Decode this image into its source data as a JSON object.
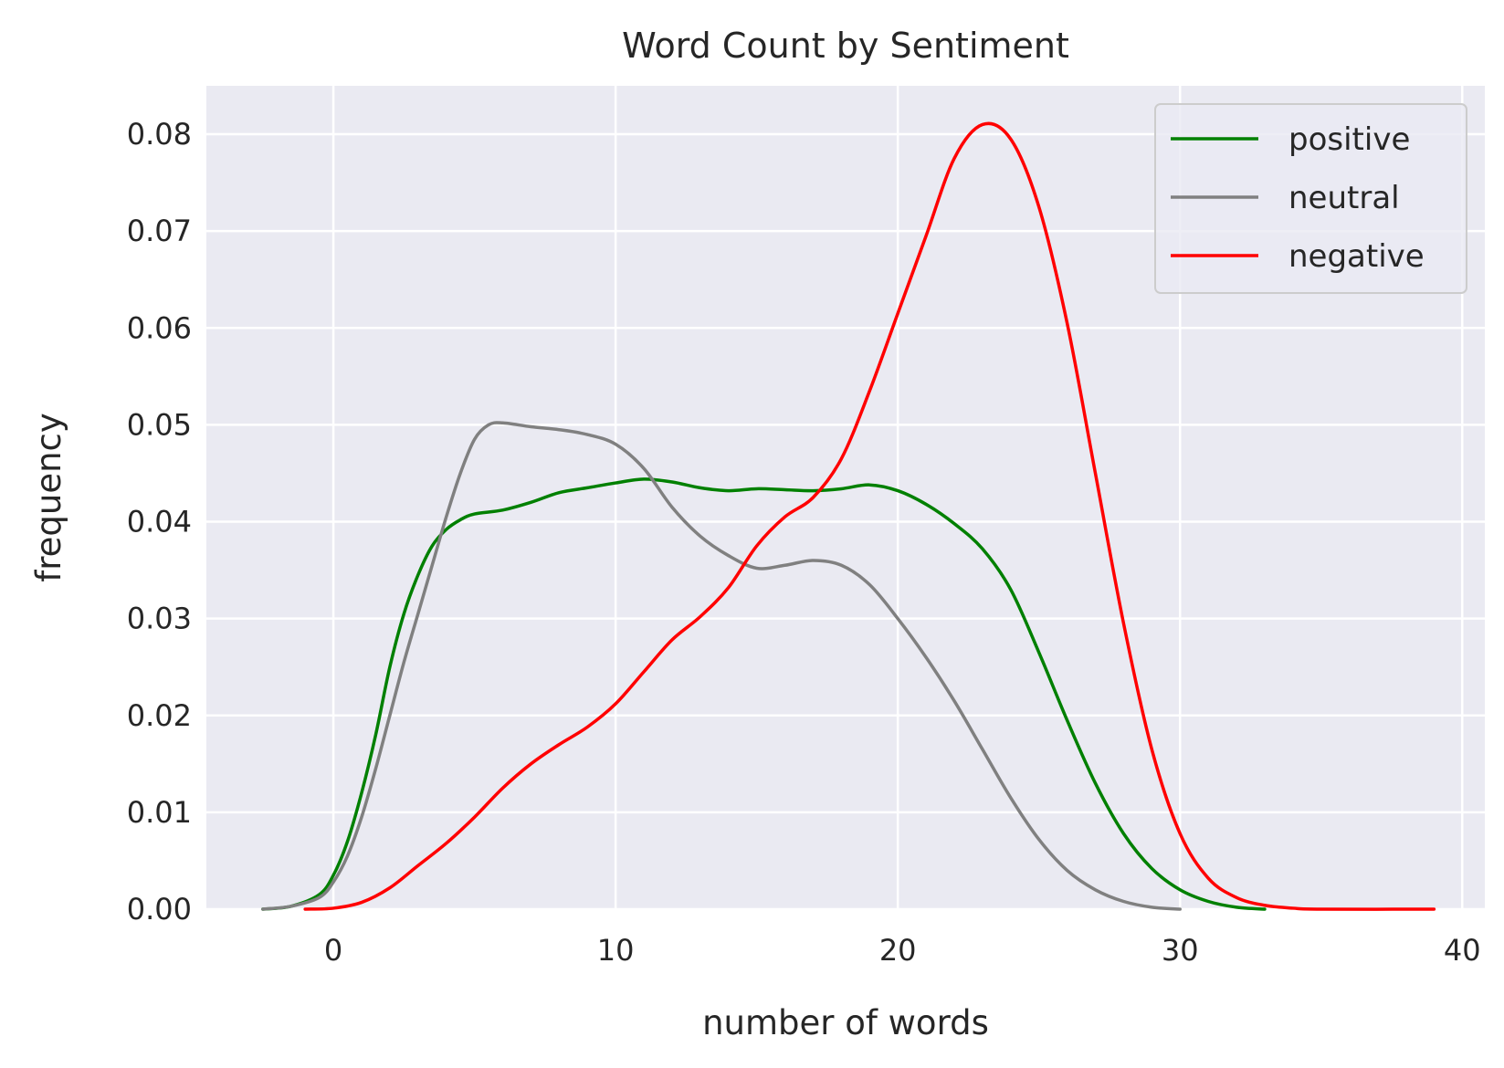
{
  "chart_data": {
    "type": "line",
    "title": "Word Count by Sentiment",
    "xlabel": "number of words",
    "ylabel": "frequency",
    "xlim": [
      -4.5,
      40.8
    ],
    "ylim": [
      0,
      0.085
    ],
    "xticks": [
      0,
      10,
      20,
      30,
      40
    ],
    "xtick_labels": [
      "0",
      "10",
      "20",
      "30",
      "40"
    ],
    "yticks": [
      0,
      0.01,
      0.02,
      0.03,
      0.04,
      0.05,
      0.06,
      0.07,
      0.08
    ],
    "ytick_labels": [
      "0.00",
      "0.01",
      "0.02",
      "0.03",
      "0.04",
      "0.05",
      "0.06",
      "0.07",
      "0.08"
    ],
    "grid": true,
    "background": "#eaeaf2",
    "legend_position": "top-right",
    "series": [
      {
        "name": "positive",
        "color": "#008000",
        "points": [
          [
            -2.5,
            0.0
          ],
          [
            -1.5,
            0.0003
          ],
          [
            -0.5,
            0.0015
          ],
          [
            0,
            0.0035
          ],
          [
            0.5,
            0.007
          ],
          [
            1,
            0.012
          ],
          [
            1.5,
            0.018
          ],
          [
            2,
            0.025
          ],
          [
            2.5,
            0.0305
          ],
          [
            3,
            0.0345
          ],
          [
            3.5,
            0.0375
          ],
          [
            4,
            0.0392
          ],
          [
            4.5,
            0.0402
          ],
          [
            5,
            0.0408
          ],
          [
            6,
            0.0412
          ],
          [
            7,
            0.042
          ],
          [
            8,
            0.043
          ],
          [
            9,
            0.0435
          ],
          [
            10,
            0.044
          ],
          [
            11,
            0.0444
          ],
          [
            12,
            0.0441
          ],
          [
            13,
            0.0435
          ],
          [
            14,
            0.0432
          ],
          [
            15,
            0.0434
          ],
          [
            16,
            0.0433
          ],
          [
            17,
            0.0432
          ],
          [
            18,
            0.0434
          ],
          [
            19,
            0.0438
          ],
          [
            20,
            0.0432
          ],
          [
            21,
            0.0418
          ],
          [
            22,
            0.0398
          ],
          [
            23,
            0.0372
          ],
          [
            24,
            0.033
          ],
          [
            25,
            0.0265
          ],
          [
            26,
            0.0195
          ],
          [
            27,
            0.013
          ],
          [
            28,
            0.0078
          ],
          [
            29,
            0.0042
          ],
          [
            30,
            0.002
          ],
          [
            31,
            0.0008
          ],
          [
            32,
            0.0002
          ],
          [
            33,
            0.0
          ]
        ]
      },
      {
        "name": "neutral",
        "color": "#808080",
        "points": [
          [
            -2.5,
            0.0
          ],
          [
            -1.5,
            0.0003
          ],
          [
            -0.5,
            0.0012
          ],
          [
            0,
            0.0028
          ],
          [
            0.5,
            0.0055
          ],
          [
            1,
            0.0095
          ],
          [
            1.5,
            0.0145
          ],
          [
            2,
            0.02
          ],
          [
            2.5,
            0.0255
          ],
          [
            3,
            0.0305
          ],
          [
            3.5,
            0.0355
          ],
          [
            4,
            0.0405
          ],
          [
            4.5,
            0.045
          ],
          [
            5,
            0.0485
          ],
          [
            5.5,
            0.05
          ],
          [
            6,
            0.0502
          ],
          [
            7,
            0.0498
          ],
          [
            8,
            0.0495
          ],
          [
            9,
            0.049
          ],
          [
            10,
            0.048
          ],
          [
            11,
            0.0455
          ],
          [
            12,
            0.0415
          ],
          [
            13,
            0.0385
          ],
          [
            14,
            0.0365
          ],
          [
            15,
            0.0352
          ],
          [
            16,
            0.0355
          ],
          [
            17,
            0.036
          ],
          [
            18,
            0.0355
          ],
          [
            19,
            0.0335
          ],
          [
            20,
            0.03
          ],
          [
            21,
            0.026
          ],
          [
            22,
            0.0215
          ],
          [
            23,
            0.0165
          ],
          [
            24,
            0.0115
          ],
          [
            25,
            0.0072
          ],
          [
            26,
            0.004
          ],
          [
            27,
            0.002
          ],
          [
            28,
            0.0008
          ],
          [
            29,
            0.0002
          ],
          [
            30,
            0.0
          ]
        ]
      },
      {
        "name": "negative",
        "color": "#ff0000",
        "points": [
          [
            -1,
            0.0
          ],
          [
            0,
            0.0001
          ],
          [
            1,
            0.0007
          ],
          [
            2,
            0.0022
          ],
          [
            3,
            0.0045
          ],
          [
            4,
            0.0068
          ],
          [
            5,
            0.0095
          ],
          [
            6,
            0.0125
          ],
          [
            7,
            0.015
          ],
          [
            8,
            0.017
          ],
          [
            9,
            0.0188
          ],
          [
            10,
            0.0212
          ],
          [
            11,
            0.0245
          ],
          [
            12,
            0.0278
          ],
          [
            13,
            0.0302
          ],
          [
            14,
            0.0332
          ],
          [
            15,
            0.0375
          ],
          [
            16,
            0.0405
          ],
          [
            17,
            0.0425
          ],
          [
            18,
            0.0465
          ],
          [
            19,
            0.0535
          ],
          [
            20,
            0.0615
          ],
          [
            21,
            0.0695
          ],
          [
            22,
            0.0775
          ],
          [
            23,
            0.081
          ],
          [
            24,
            0.0795
          ],
          [
            25,
            0.0725
          ],
          [
            26,
            0.0605
          ],
          [
            27,
            0.045
          ],
          [
            28,
            0.0295
          ],
          [
            29,
            0.0165
          ],
          [
            30,
            0.0078
          ],
          [
            31,
            0.0032
          ],
          [
            32,
            0.0012
          ],
          [
            33,
            0.0004
          ],
          [
            34,
            0.0001
          ],
          [
            35,
            0.0
          ],
          [
            39,
            0.0
          ]
        ]
      }
    ]
  }
}
